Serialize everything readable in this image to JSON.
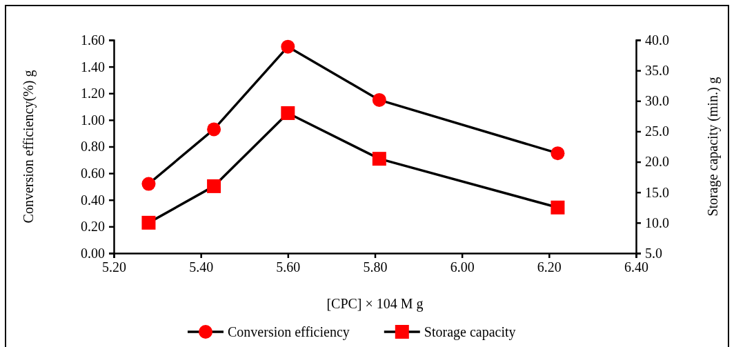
{
  "chart_data": {
    "type": "line",
    "xlabel": "[CPC] × 104 M g",
    "ylabel": "Conversion efficiency(%) g",
    "y2label": "Storage capacity (min.) g",
    "x": [
      5.28,
      5.43,
      5.6,
      5.81,
      6.22
    ],
    "xlim": [
      5.2,
      6.4
    ],
    "xticks": [
      {
        "value": 5.2,
        "label": "5.20"
      },
      {
        "value": 5.4,
        "label": "5.40"
      },
      {
        "value": 5.6,
        "label": "5.60"
      },
      {
        "value": 5.8,
        "label": "5.80"
      },
      {
        "value": 6.0,
        "label": "6.00"
      },
      {
        "value": 6.2,
        "label": "6.20"
      },
      {
        "value": 6.4,
        "label": "6.40"
      }
    ],
    "ylim": [
      0,
      1.6
    ],
    "yticks": [
      {
        "value": 0,
        "label": "0.00"
      },
      {
        "value": 0.2,
        "label": "0.20"
      },
      {
        "value": 0.4,
        "label": "0.40"
      },
      {
        "value": 0.6,
        "label": "0.60"
      },
      {
        "value": 0.8,
        "label": "0.80"
      },
      {
        "value": 1.0,
        "label": "1.00"
      },
      {
        "value": 1.2,
        "label": "1.20"
      },
      {
        "value": 1.4,
        "label": "1.40"
      },
      {
        "value": 1.6,
        "label": "1.60"
      }
    ],
    "y2lim": [
      5,
      40
    ],
    "y2ticks": [
      {
        "value": 5,
        "label": "5.0"
      },
      {
        "value": 10,
        "label": "10.0"
      },
      {
        "value": 15,
        "label": "15.0"
      },
      {
        "value": 20,
        "label": "20.0"
      },
      {
        "value": 25,
        "label": "25.0"
      },
      {
        "value": 30,
        "label": "30.0"
      },
      {
        "value": 35,
        "label": "35.0"
      },
      {
        "value": 40,
        "label": "40.0"
      }
    ],
    "series": [
      {
        "name": "Conversion efficiency",
        "color": "#ff0000",
        "marker": "circle",
        "values": [
          0.52,
          0.93,
          1.55,
          1.15,
          0.75
        ]
      },
      {
        "name": "Storage capacity",
        "color": "#ff0000",
        "marker": "square",
        "axis": "y2",
        "values": [
          10.0,
          16.0,
          28.0,
          20.5,
          12.5
        ]
      }
    ],
    "legend": "bottom",
    "grid": false
  }
}
